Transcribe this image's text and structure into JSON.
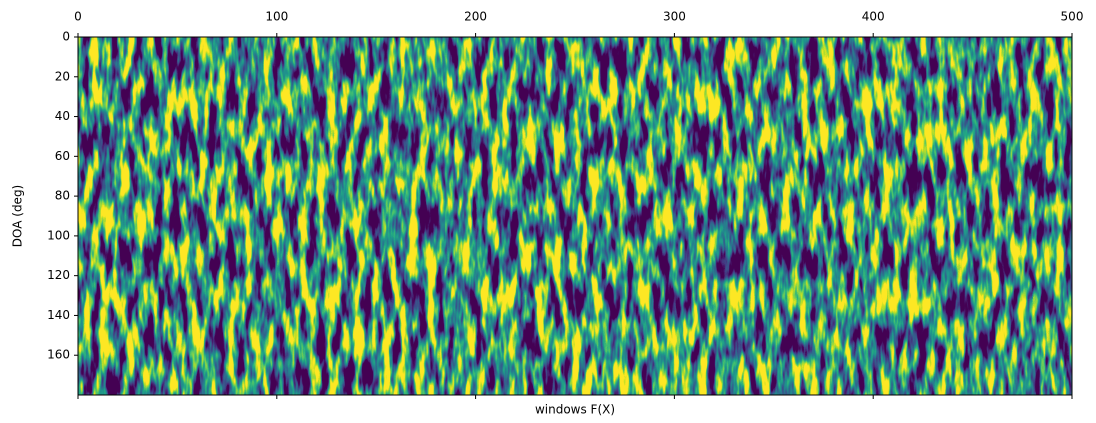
{
  "chart_data": {
    "type": "heatmap",
    "xlabel": "windows F(X)",
    "ylabel": "DOA (deg)",
    "xlim": [
      0,
      500
    ],
    "xticks": [
      0,
      100,
      200,
      300,
      400,
      500
    ],
    "ylim": [
      180,
      0
    ],
    "yticks": [
      0,
      20,
      40,
      60,
      80,
      100,
      120,
      140,
      160
    ],
    "colormap": "viridis"
  }
}
